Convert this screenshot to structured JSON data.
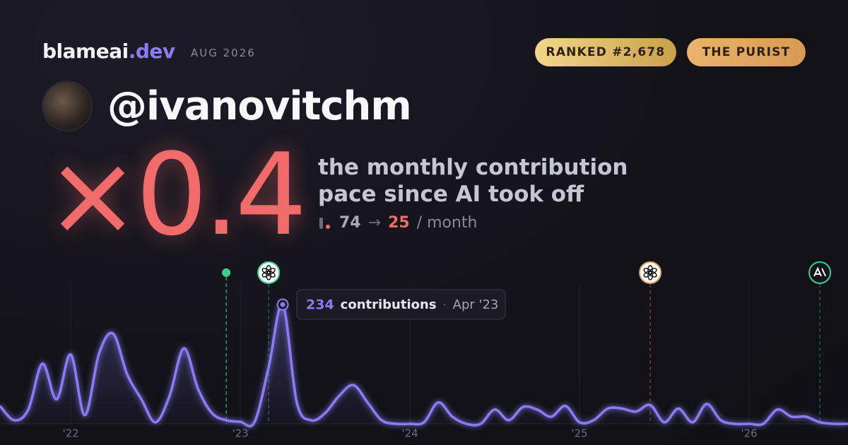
{
  "header": {
    "brand": "blameai",
    "brand_suffix": ".dev",
    "date": "AUG 2026",
    "badges": [
      "RANKED #2,678",
      "THE PURIST"
    ],
    "handle": "@ivanovitchm"
  },
  "headline": {
    "multiplier": "×0.4",
    "description": [
      "the monthly contribution",
      "pace since AI took off"
    ],
    "before": "74",
    "arrow": "→",
    "after": "25",
    "unit": "/ month"
  },
  "chart_data": {
    "type": "line",
    "x": [
      2021.583,
      2021.667,
      2021.75,
      2021.833,
      2021.917,
      2022,
      2022.083,
      2022.167,
      2022.25,
      2022.333,
      2022.417,
      2022.5,
      2022.583,
      2022.667,
      2022.75,
      2022.833,
      2022.917,
      2023,
      2023.083,
      2023.167,
      2023.25,
      2023.333,
      2023.417,
      2023.5,
      2023.583,
      2023.667,
      2023.75,
      2023.833,
      2023.917,
      2024,
      2024.083,
      2024.167,
      2024.25,
      2024.333,
      2024.417,
      2024.5,
      2024.583,
      2024.667,
      2024.75,
      2024.833,
      2024.917,
      2025,
      2025.083,
      2025.167,
      2025.25,
      2025.333,
      2025.417,
      2025.5,
      2025.583,
      2025.667,
      2025.75,
      2025.833,
      2025.917,
      2026,
      2026.083,
      2026.167,
      2026.25,
      2026.333,
      2026.417,
      2026.5,
      2026.583
    ],
    "series": [
      {
        "name": "contributions",
        "color": "#8b7cf6",
        "values": [
          35,
          7,
          28,
          118,
          48,
          136,
          17,
          138,
          177,
          97,
          48,
          3,
          55,
          148,
          69,
          21,
          7,
          4,
          3,
          111,
          234,
          42,
          7,
          21,
          55,
          76,
          42,
          7,
          0,
          0,
          3,
          42,
          14,
          0,
          0,
          28,
          7,
          33,
          28,
          14,
          35,
          3,
          7,
          30,
          30,
          24,
          37,
          3,
          30,
          3,
          39,
          7,
          0,
          0,
          0,
          28,
          14,
          14,
          3,
          0,
          0
        ]
      }
    ],
    "xlim": [
      2021.583,
      2026.583
    ],
    "ylim": [
      0,
      280
    ],
    "xticks": [
      {
        "value": 2022,
        "label": "'22"
      },
      {
        "value": 2023,
        "label": "'23"
      },
      {
        "value": 2024,
        "label": "'24"
      },
      {
        "value": 2025,
        "label": "'25"
      },
      {
        "value": 2026,
        "label": "'26"
      }
    ],
    "grid": true,
    "events": [
      {
        "x": 2022.917,
        "color": "#3ecf8e"
      },
      {
        "x": 2023.167,
        "color": "#3ecf8e"
      },
      {
        "x": 2025.417,
        "color": "#e0a060"
      },
      {
        "x": 2026.417,
        "color": "#3ecf8e"
      }
    ],
    "tooltip": {
      "x": 2023.25,
      "unit": "contributions",
      "separator": "·",
      "date": "Apr '23"
    }
  }
}
